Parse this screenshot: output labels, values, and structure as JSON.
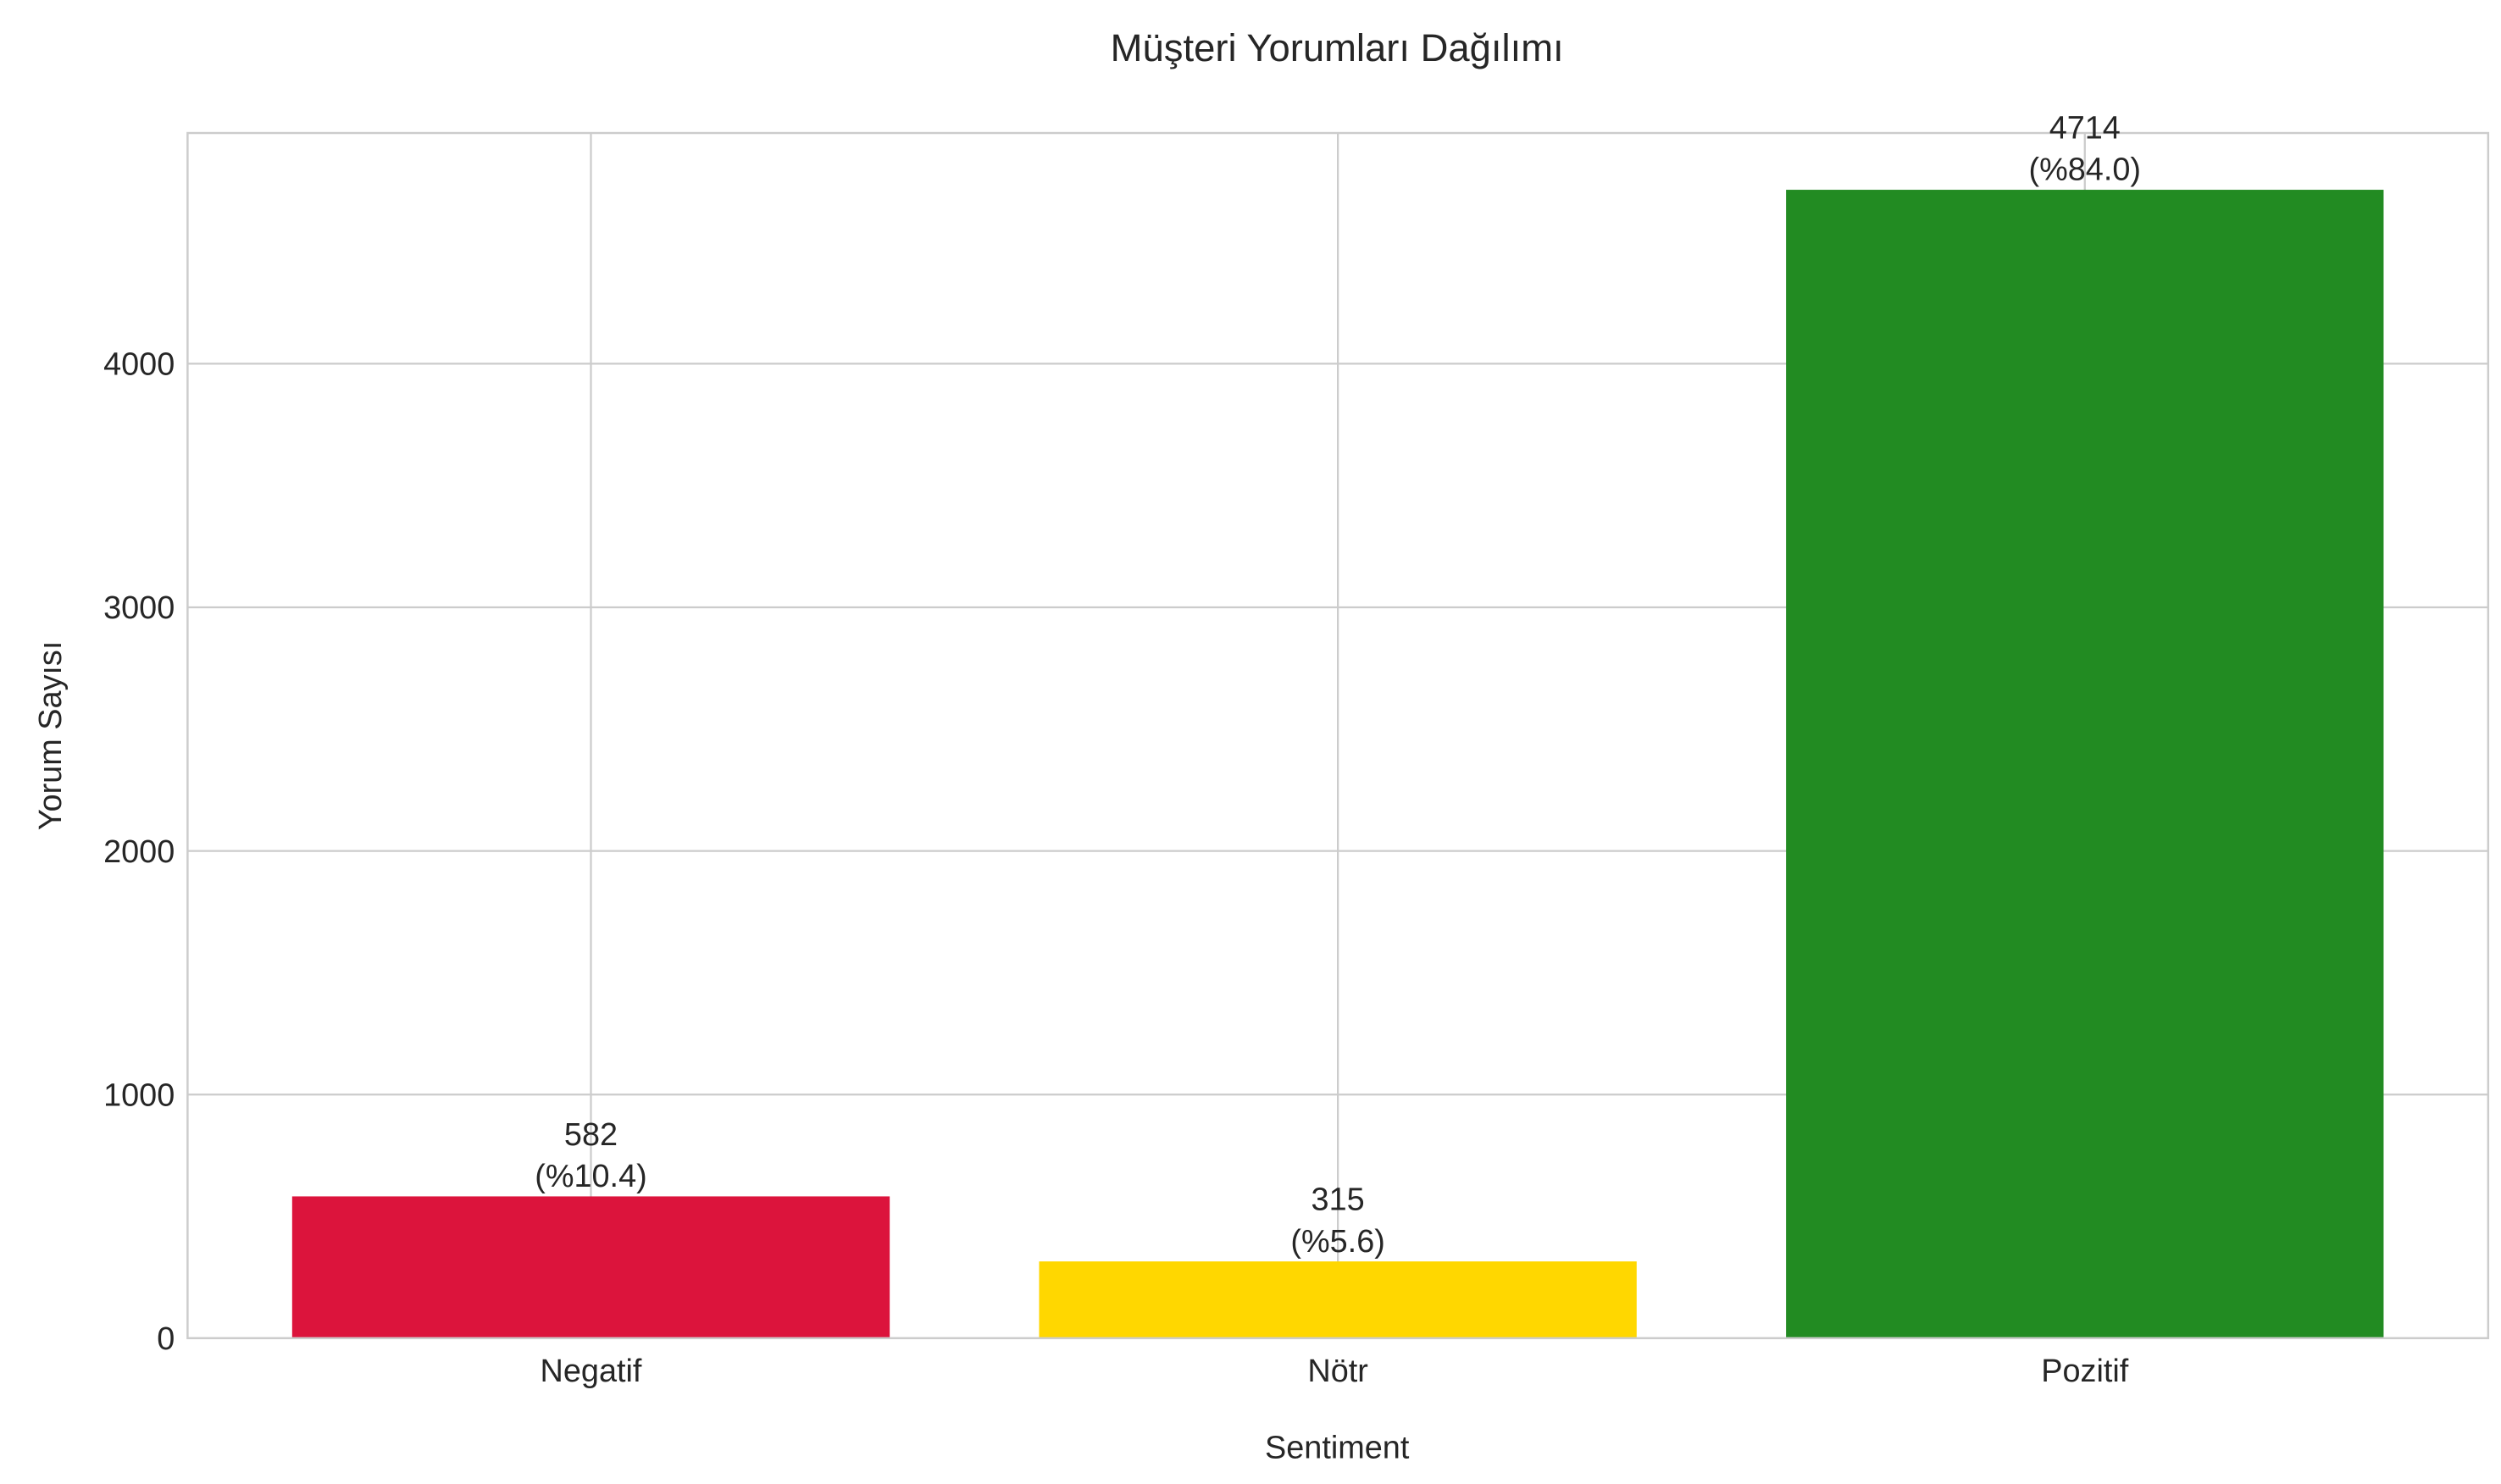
{
  "chart_data": {
    "type": "bar",
    "title": "Müşteri Yorumları Dağılımı",
    "xlabel": "Sentiment",
    "ylabel": "Yorum Sayısı",
    "categories": [
      "Negatif",
      "Nötr",
      "Pozitif"
    ],
    "values": [
      582,
      315,
      4714
    ],
    "percent_labels": [
      "(%10.4)",
      "(%5.6)",
      "(%84.0)"
    ],
    "value_labels": [
      "582",
      "315",
      "4714"
    ],
    "colors": [
      "#dc143c",
      "#ffd700",
      "#228b22"
    ],
    "ylim": [
      0,
      4947
    ],
    "xlim": [
      -0.54,
      2.54
    ],
    "yticks": [
      0,
      1000,
      2000,
      3000,
      4000
    ],
    "ytick_labels": [
      "0",
      "1000",
      "2000",
      "3000",
      "4000"
    ],
    "grid": true
  }
}
